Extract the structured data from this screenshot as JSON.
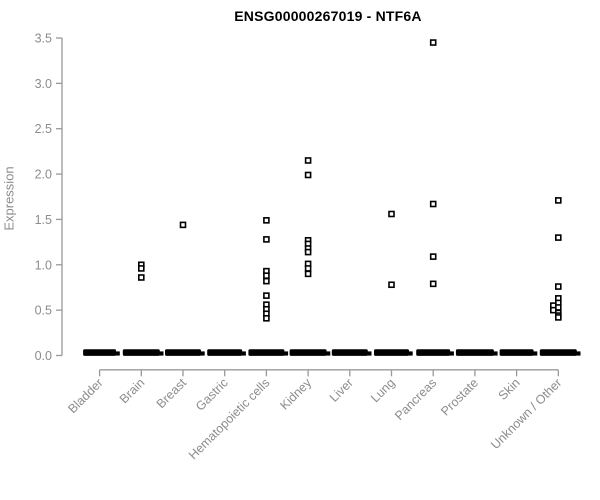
{
  "title": "ENSG00000267019 - NTF6A",
  "axes": {
    "y_label": "Expression"
  },
  "chart_data": {
    "type": "scatter",
    "subtype": "strip-plot",
    "title": "ENSG00000267019 - NTF6A",
    "xlabel": "",
    "ylabel": "Expression",
    "ylim": [
      0,
      3.5
    ],
    "y_ticks": [
      0.0,
      0.5,
      1.0,
      1.5,
      2.0,
      2.5,
      3.0,
      3.5
    ],
    "grid": false,
    "legend": "none",
    "marker": "open-square",
    "colors": {
      "marker": "#000000",
      "axis_line": "#999999",
      "axis_text": "#8c8c8c",
      "title": "#000000",
      "background": "#ffffff"
    },
    "categories": [
      "Bladder",
      "Brain",
      "Breast",
      "Gastric",
      "Hematopoietic cells",
      "Kidney",
      "Liver",
      "Lung",
      "Pancreas",
      "Prostate",
      "Skin",
      "Unknown / Other"
    ],
    "series": [
      {
        "category": "Bladder",
        "zero_cluster": true,
        "zero_dash_width": 33,
        "points": []
      },
      {
        "category": "Brain",
        "zero_cluster": true,
        "zero_dash_width": 37,
        "points": [
          1.0,
          0.96,
          0.86
        ]
      },
      {
        "category": "Breast",
        "zero_cluster": true,
        "zero_dash_width": 36,
        "points": [
          1.44
        ]
      },
      {
        "category": "Gastric",
        "zero_cluster": true,
        "zero_dash_width": 35,
        "points": []
      },
      {
        "category": "Hematopoietic cells",
        "zero_cluster": true,
        "zero_dash_width": 36,
        "points": [
          1.49,
          1.28,
          0.93,
          0.88,
          0.82,
          0.66,
          0.56,
          0.51,
          0.46,
          0.41
        ]
      },
      {
        "category": "Kidney",
        "zero_cluster": true,
        "zero_dash_width": 37,
        "points": [
          2.15,
          1.99,
          1.27,
          1.23,
          1.18,
          1.14,
          1.01,
          0.96,
          0.9
        ]
      },
      {
        "category": "Liver",
        "zero_cluster": true,
        "zero_dash_width": 36,
        "points": []
      },
      {
        "category": "Lung",
        "zero_cluster": true,
        "zero_dash_width": 35,
        "points": [
          1.56,
          0.78
        ]
      },
      {
        "category": "Pancreas",
        "zero_cluster": true,
        "zero_dash_width": 34,
        "points": [
          3.45,
          1.67,
          1.09,
          0.79
        ]
      },
      {
        "category": "Prostate",
        "zero_cluster": true,
        "zero_dash_width": 38,
        "points": []
      },
      {
        "category": "Skin",
        "zero_cluster": true,
        "zero_dash_width": 34,
        "points": []
      },
      {
        "category": "Unknown / Other",
        "zero_cluster": true,
        "zero_dash_width": 37,
        "points": [
          1.71,
          1.3,
          0.76,
          0.63,
          0.58,
          [
            0.55,
            -5
          ],
          0.53,
          [
            0.5,
            -5
          ],
          0.47,
          0.44,
          0.42
        ]
      }
    ]
  }
}
